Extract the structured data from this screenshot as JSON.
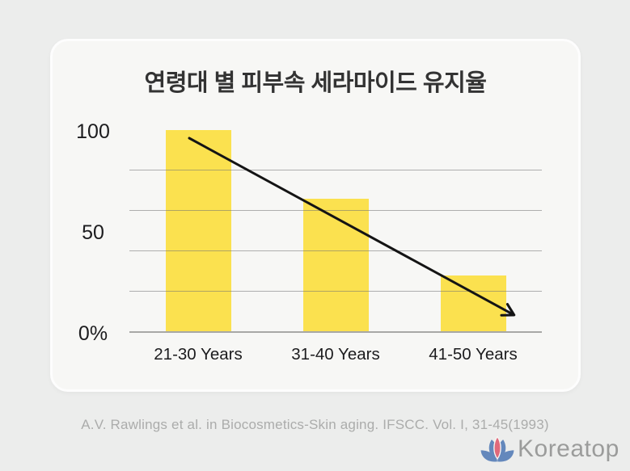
{
  "chart_data": {
    "type": "bar",
    "title": "연령대 별 피부속 세라마이드 유지율",
    "categories": [
      "21-30 Years",
      "31-40 Years",
      "41-50 Years"
    ],
    "values": [
      100,
      66,
      28
    ],
    "xlabel": "",
    "ylabel": "",
    "ylim": [
      0,
      100
    ],
    "yticks": [
      {
        "label": "100",
        "value": 100
      },
      {
        "label": "50",
        "value": 50
      },
      {
        "label": "0%",
        "value": 0
      }
    ],
    "gridline_values": [
      20,
      40,
      60,
      80
    ],
    "grid": "horizontal",
    "legend": "none",
    "bar_color": "#FBE14F",
    "annotations": [
      {
        "type": "arrow",
        "description": "black declining trend arrow from top of first bar to below the baseline level of last bar"
      }
    ]
  },
  "source": "A.V. Rawlings et al. in Biocosmetics-Skin aging. IFSCC. Vol. I, 31-45(1993)",
  "watermark": {
    "brand": "Koreatop",
    "icon": "lotus-icon"
  },
  "colors": {
    "page_bg": "#ECEDEC",
    "card_bg": "#F7F7F5",
    "bar": "#FBE14F",
    "gridline": "#737373",
    "arrow": "#141414",
    "title_text": "#333333",
    "axis_text": "#1C1C1E",
    "source_text": "#ABACAB",
    "brand_text": "#9B9C9B",
    "lotus_blue": "#6488BC",
    "lotus_pink": "#E0697B"
  }
}
